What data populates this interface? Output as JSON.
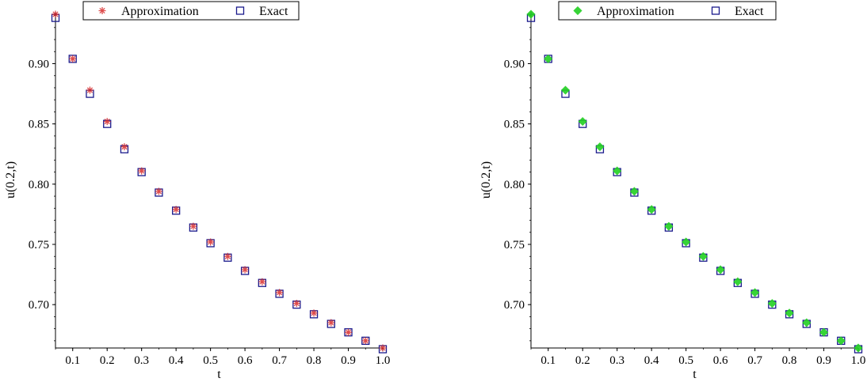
{
  "chart_data": [
    {
      "type": "scatter",
      "title": "",
      "xlabel": "t",
      "ylabel": "u(0.2,t)",
      "xlim": [
        0.05,
        1.0
      ],
      "ylim": [
        0.664,
        0.943
      ],
      "xticks": [
        "0.1",
        "0.2",
        "0.3",
        "0.4",
        "0.5",
        "0.6",
        "0.7",
        "0.8",
        "0.9",
        "1.0"
      ],
      "yticks": [
        "0.70",
        "0.75",
        "0.80",
        "0.85",
        "0.90"
      ],
      "grid": false,
      "legend_position": "top",
      "x": [
        0.05,
        0.1,
        0.15,
        0.2,
        0.25,
        0.3,
        0.35,
        0.4,
        0.45,
        0.5,
        0.55,
        0.6,
        0.65,
        0.7,
        0.75,
        0.8,
        0.85,
        0.9,
        0.95,
        1.0
      ],
      "series": [
        {
          "name": "Approximation",
          "marker": "asterisk",
          "color": "#d62020",
          "values": [
            0.941,
            0.904,
            0.878,
            0.852,
            0.831,
            0.811,
            0.794,
            0.779,
            0.765,
            0.752,
            0.74,
            0.729,
            0.719,
            0.71,
            0.701,
            0.693,
            0.685,
            0.677,
            0.67,
            0.664
          ]
        },
        {
          "name": "Exact",
          "marker": "square",
          "color": "#1a1a8c",
          "values": [
            0.938,
            0.904,
            0.875,
            0.85,
            0.829,
            0.81,
            0.793,
            0.778,
            0.764,
            0.751,
            0.739,
            0.728,
            0.718,
            0.709,
            0.7,
            0.692,
            0.684,
            0.677,
            0.67,
            0.663
          ]
        }
      ]
    },
    {
      "type": "scatter",
      "title": "",
      "xlabel": "t",
      "ylabel": "u(0.2,t)",
      "xlim": [
        0.05,
        1.0
      ],
      "ylim": [
        0.664,
        0.943
      ],
      "xticks": [
        "0.1",
        "0.2",
        "0.3",
        "0.4",
        "0.5",
        "0.6",
        "0.7",
        "0.8",
        "0.9",
        "1.0"
      ],
      "yticks": [
        "0.70",
        "0.75",
        "0.80",
        "0.85",
        "0.90"
      ],
      "grid": false,
      "legend_position": "top",
      "x": [
        0.05,
        0.1,
        0.15,
        0.2,
        0.25,
        0.3,
        0.35,
        0.4,
        0.45,
        0.5,
        0.55,
        0.6,
        0.65,
        0.7,
        0.75,
        0.8,
        0.85,
        0.9,
        0.95,
        1.0
      ],
      "series": [
        {
          "name": "Approximation",
          "marker": "diamond",
          "color": "#22d022",
          "values": [
            0.941,
            0.904,
            0.878,
            0.852,
            0.831,
            0.811,
            0.794,
            0.779,
            0.765,
            0.752,
            0.74,
            0.729,
            0.719,
            0.71,
            0.701,
            0.693,
            0.685,
            0.677,
            0.67,
            0.664
          ]
        },
        {
          "name": "Exact",
          "marker": "square",
          "color": "#1a1a8c",
          "values": [
            0.938,
            0.904,
            0.875,
            0.85,
            0.829,
            0.81,
            0.793,
            0.778,
            0.764,
            0.751,
            0.739,
            0.728,
            0.718,
            0.709,
            0.7,
            0.692,
            0.684,
            0.677,
            0.67,
            0.663
          ]
        }
      ]
    }
  ]
}
